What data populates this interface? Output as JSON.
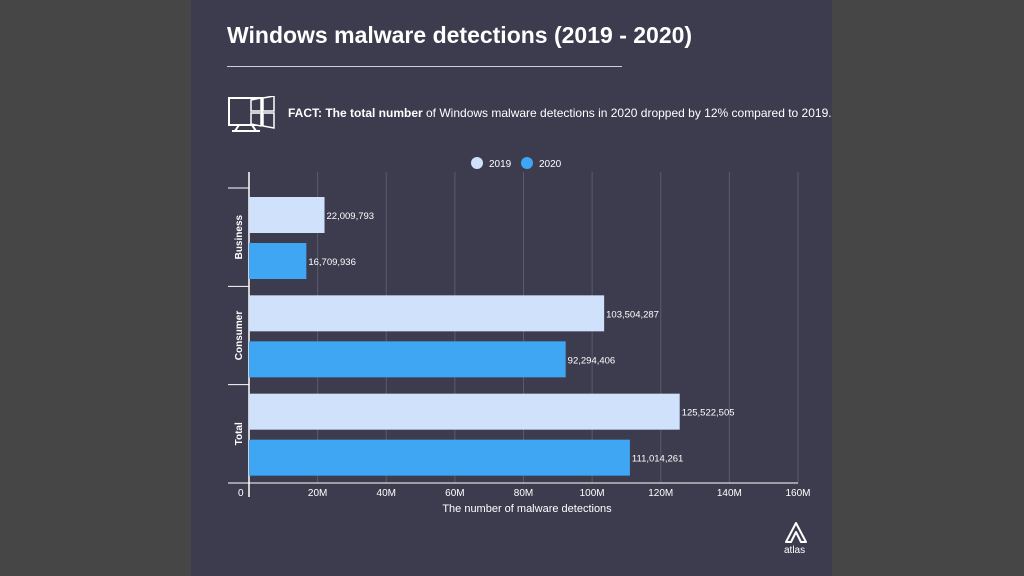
{
  "title": "Windows malware detections (2019 - 2020)",
  "fact": {
    "prefix": "FACT: The total number",
    "text": " of Windows malware detections in 2020 dropped by 12% compared to 2019."
  },
  "logo_text": "atlas",
  "icons": {
    "fact": "windows-monitor-icon",
    "logo": "atlas-logo-icon"
  },
  "colors": {
    "series_2019": "#d0e2fb",
    "series_2020": "#3ea6f2",
    "background": "#3d3c4e"
  },
  "chart_data": {
    "type": "bar",
    "orientation": "horizontal",
    "categories": [
      "Business",
      "Consumer",
      "Total"
    ],
    "series": [
      {
        "name": "2019",
        "values": [
          22009793,
          103504287,
          125522505
        ],
        "labels": [
          "22,009,793",
          "103,504,287",
          "125,522,505"
        ]
      },
      {
        "name": "2020",
        "values": [
          16709936,
          92294406,
          111014261
        ],
        "labels": [
          "16,709,936",
          "92,294,406",
          "111,014,261"
        ]
      }
    ],
    "xlabel": "The number of malware detections",
    "ylabel": "",
    "xlim": [
      0,
      160000000
    ],
    "xticks": [
      0,
      20000000,
      40000000,
      60000000,
      80000000,
      100000000,
      120000000,
      140000000,
      160000000
    ],
    "xtick_labels": [
      "0",
      "20M",
      "40M",
      "60M",
      "80M",
      "100M",
      "120M",
      "140M",
      "160M"
    ],
    "grid": true,
    "legend_position": "top"
  }
}
